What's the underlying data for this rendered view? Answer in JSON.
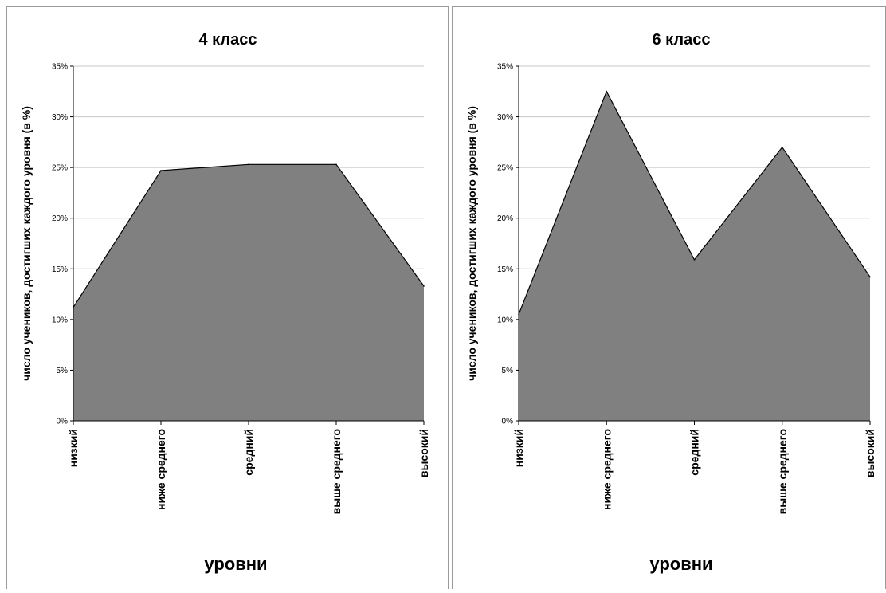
{
  "chart_data": [
    {
      "type": "area",
      "title": "4 класс",
      "xlabel": "уровни",
      "ylabel": "число учеников, достигших каждого уровня (в %)",
      "categories": [
        "низкий",
        "ниже среднего",
        "средний",
        "выше среднего",
        "высокий"
      ],
      "values": [
        11.2,
        24.7,
        25.3,
        25.3,
        13.3
      ],
      "ylim": [
        0,
        35
      ],
      "yticks": [
        "0%",
        "5%",
        "10%",
        "15%",
        "20%",
        "25%",
        "30%",
        "35%"
      ],
      "grid": true,
      "fill_color": "#808080",
      "line_color": "#000000"
    },
    {
      "type": "area",
      "title": "6 класс",
      "xlabel": "уровни",
      "ylabel": "число учеников, достигших каждого уровня (в %)",
      "categories": [
        "низкий",
        "ниже среднего",
        "средний",
        "выше среднего",
        "высокий"
      ],
      "values": [
        10.5,
        32.5,
        15.9,
        27.0,
        14.2
      ],
      "ylim": [
        0,
        35
      ],
      "yticks": [
        "0%",
        "5%",
        "10%",
        "15%",
        "20%",
        "25%",
        "30%",
        "35%"
      ],
      "grid": true,
      "fill_color": "#808080",
      "line_color": "#000000"
    }
  ]
}
